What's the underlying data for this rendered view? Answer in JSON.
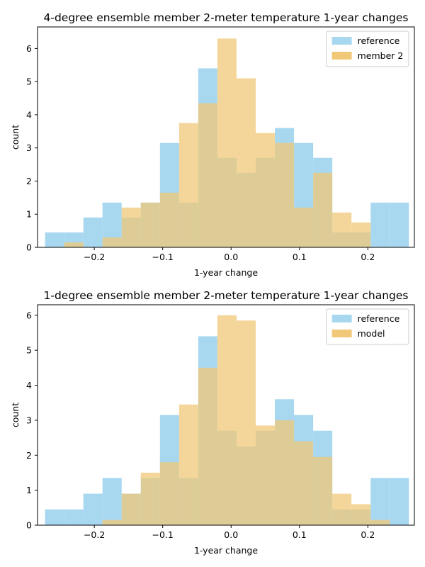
{
  "chart_data": [
    {
      "type": "bar",
      "title": "4-degree ensemble member 2-meter temperature 1-year changes",
      "xlabel": "1-year change",
      "ylabel": "count",
      "xlim": [
        -0.283,
        0.268
      ],
      "ylim": [
        0,
        6.65
      ],
      "xticks": [
        -0.2,
        -0.1,
        0.0,
        0.1,
        0.2
      ],
      "xtick_labels": [
        "−0.2",
        "−0.1",
        "0.0",
        "0.1",
        "0.2"
      ],
      "yticks": [
        0,
        1,
        2,
        3,
        4,
        5,
        6
      ],
      "ytick_labels": [
        "0",
        "1",
        "2",
        "3",
        "4",
        "5",
        "6"
      ],
      "legend_position": "upper-right",
      "series": [
        {
          "name": "reference",
          "color": "#a8d8f0",
          "bins": [
            [
              -0.272,
              -0.244,
              0.45
            ],
            [
              -0.244,
              -0.216,
              0.45
            ],
            [
              -0.216,
              -0.188,
              0.9
            ],
            [
              -0.188,
              -0.16,
              1.35
            ],
            [
              -0.16,
              -0.132,
              0.9
            ],
            [
              -0.132,
              -0.104,
              1.35
            ],
            [
              -0.104,
              -0.076,
              3.15
            ],
            [
              -0.076,
              -0.048,
              1.35
            ],
            [
              -0.048,
              -0.02,
              5.4
            ],
            [
              -0.02,
              0.008,
              2.7
            ],
            [
              0.008,
              0.036,
              2.25
            ],
            [
              0.036,
              0.064,
              2.7
            ],
            [
              0.064,
              0.092,
              3.6
            ],
            [
              0.092,
              0.12,
              3.15
            ],
            [
              0.12,
              0.148,
              2.7
            ],
            [
              0.148,
              0.176,
              0.45
            ],
            [
              0.176,
              0.204,
              0.45
            ],
            [
              0.204,
              0.232,
              1.35
            ],
            [
              0.232,
              0.26,
              1.35
            ]
          ]
        },
        {
          "name": "member 2",
          "color": "#f0c878",
          "bins": [
            [
              -0.244,
              -0.216,
              0.15
            ],
            [
              -0.188,
              -0.16,
              0.3
            ],
            [
              -0.16,
              -0.132,
              1.2
            ],
            [
              -0.132,
              -0.104,
              1.35
            ],
            [
              -0.104,
              -0.076,
              1.65
            ],
            [
              -0.076,
              -0.048,
              3.75
            ],
            [
              -0.048,
              -0.02,
              4.35
            ],
            [
              -0.02,
              0.008,
              6.3
            ],
            [
              0.008,
              0.036,
              5.1
            ],
            [
              0.036,
              0.064,
              3.45
            ],
            [
              0.064,
              0.092,
              3.15
            ],
            [
              0.092,
              0.12,
              1.2
            ],
            [
              0.12,
              0.148,
              2.25
            ],
            [
              0.148,
              0.176,
              1.05
            ],
            [
              0.176,
              0.204,
              0.75
            ]
          ]
        }
      ]
    },
    {
      "type": "bar",
      "title": "1-degree ensemble member 2-meter temperature 1-year changes",
      "xlabel": "1-year change",
      "ylabel": "count",
      "xlim": [
        -0.283,
        0.268
      ],
      "ylim": [
        0,
        6.3
      ],
      "xticks": [
        -0.2,
        -0.1,
        0.0,
        0.1,
        0.2
      ],
      "xtick_labels": [
        "−0.2",
        "−0.1",
        "0.0",
        "0.1",
        "0.2"
      ],
      "yticks": [
        0,
        1,
        2,
        3,
        4,
        5,
        6
      ],
      "ytick_labels": [
        "0",
        "1",
        "2",
        "3",
        "4",
        "5",
        "6"
      ],
      "legend_position": "upper-right",
      "series": [
        {
          "name": "reference",
          "color": "#a8d8f0",
          "bins": [
            [
              -0.272,
              -0.244,
              0.45
            ],
            [
              -0.244,
              -0.216,
              0.45
            ],
            [
              -0.216,
              -0.188,
              0.9
            ],
            [
              -0.188,
              -0.16,
              1.35
            ],
            [
              -0.16,
              -0.132,
              0.9
            ],
            [
              -0.132,
              -0.104,
              1.35
            ],
            [
              -0.104,
              -0.076,
              3.15
            ],
            [
              -0.076,
              -0.048,
              1.35
            ],
            [
              -0.048,
              -0.02,
              5.4
            ],
            [
              -0.02,
              0.008,
              2.7
            ],
            [
              0.008,
              0.036,
              2.25
            ],
            [
              0.036,
              0.064,
              2.7
            ],
            [
              0.064,
              0.092,
              3.6
            ],
            [
              0.092,
              0.12,
              3.15
            ],
            [
              0.12,
              0.148,
              2.7
            ],
            [
              0.148,
              0.176,
              0.45
            ],
            [
              0.176,
              0.204,
              0.45
            ],
            [
              0.204,
              0.232,
              1.35
            ],
            [
              0.232,
              0.26,
              1.35
            ]
          ]
        },
        {
          "name": "model",
          "color": "#f0c878",
          "bins": [
            [
              -0.188,
              -0.16,
              0.15
            ],
            [
              -0.16,
              -0.132,
              0.9
            ],
            [
              -0.132,
              -0.104,
              1.5
            ],
            [
              -0.104,
              -0.076,
              1.8
            ],
            [
              -0.076,
              -0.048,
              3.45
            ],
            [
              -0.048,
              -0.02,
              4.5
            ],
            [
              -0.02,
              0.008,
              6.0
            ],
            [
              0.008,
              0.036,
              5.85
            ],
            [
              0.036,
              0.064,
              2.85
            ],
            [
              0.064,
              0.092,
              3.0
            ],
            [
              0.092,
              0.12,
              2.4
            ],
            [
              0.12,
              0.148,
              1.95
            ],
            [
              0.148,
              0.176,
              0.9
            ],
            [
              0.176,
              0.204,
              0.6
            ],
            [
              0.204,
              0.232,
              0.15
            ]
          ]
        }
      ]
    }
  ]
}
